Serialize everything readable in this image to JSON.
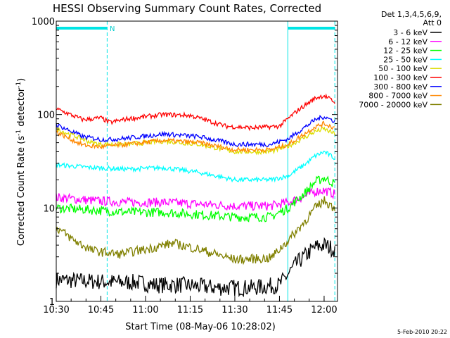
{
  "chart_data": {
    "type": "line",
    "title": "HESSI Observing Summary Count Rates, Corrected",
    "xlabel": "Start Time (08-May-06 10:28:02)",
    "ylabel_main": "Corrected Count Rate (s",
    "ylabel_sup1": "-1",
    "ylabel_mid": " detector",
    "ylabel_sup2": "-1",
    "ylabel_end": ")",
    "yscale": "log",
    "ylim": [
      1,
      1000
    ],
    "xlim": [
      10.5,
      12.075
    ],
    "x_ticks": [
      {
        "v": 10.5,
        "label": "10:30"
      },
      {
        "v": 10.75,
        "label": "10:45"
      },
      {
        "v": 11.0,
        "label": "11:00"
      },
      {
        "v": 11.25,
        "label": "11:15"
      },
      {
        "v": 11.5,
        "label": "11:30"
      },
      {
        "v": 11.75,
        "label": "11:45"
      },
      {
        "v": 12.0,
        "label": "12:00"
      }
    ],
    "y_ticks": [
      {
        "v": 1,
        "label": "1"
      },
      {
        "v": 10,
        "label": "10"
      },
      {
        "v": 100,
        "label": "100"
      },
      {
        "v": 1000,
        "label": "1000"
      }
    ],
    "legend_header": [
      "Det 1,3,4,5,6,9,",
      "Att 0"
    ],
    "legend_placement": "right",
    "annotation": "N",
    "night_intervals": [
      [
        10.5,
        10.785
      ],
      [
        11.797,
        12.06
      ]
    ],
    "event_lines": [
      10.5,
      10.785,
      11.797,
      12.06
    ],
    "footer": "5-Feb-2010 20:22",
    "series": [
      {
        "name": "3 - 6 keV",
        "color": "#000000",
        "x": [
          10.5,
          10.85,
          10.95,
          11.05,
          11.2,
          11.4,
          11.6,
          11.75,
          11.85,
          11.95,
          12.0,
          12.06
        ],
        "values": [
          1.7,
          1.6,
          1.6,
          1.5,
          1.5,
          1.4,
          1.4,
          1.5,
          2.6,
          3.8,
          4.0,
          3.6
        ]
      },
      {
        "name": "6 - 12 keV",
        "color": "#ff00ff",
        "x": [
          10.5,
          10.7,
          10.9,
          11.1,
          11.3,
          11.5,
          11.7,
          11.8,
          11.9,
          11.95,
          12.0,
          12.06
        ],
        "values": [
          13,
          12,
          11.5,
          11.5,
          11,
          10.5,
          10.5,
          11.5,
          13.5,
          15,
          15.5,
          14
        ]
      },
      {
        "name": "12 - 25 keV",
        "color": "#00ff00",
        "x": [
          10.5,
          10.7,
          10.9,
          11.1,
          11.3,
          11.5,
          11.7,
          11.8,
          11.9,
          11.95,
          12.0,
          12.06
        ],
        "values": [
          10,
          9.5,
          9,
          9,
          8.5,
          8,
          8,
          10,
          15,
          19,
          21,
          18
        ]
      },
      {
        "name": "25 - 50 keV",
        "color": "#00ffff",
        "x": [
          10.5,
          10.7,
          10.9,
          11.1,
          11.3,
          11.5,
          11.7,
          11.8,
          11.9,
          11.95,
          12.0,
          12.06
        ],
        "values": [
          29,
          27,
          26,
          27,
          24,
          20,
          20,
          22,
          30,
          36,
          40,
          34
        ]
      },
      {
        "name": "50 - 100 keV",
        "color": "#dddd00",
        "x": [
          10.5,
          10.7,
          10.75,
          10.9,
          11.1,
          11.3,
          11.5,
          11.7,
          11.8,
          11.9,
          11.95,
          12.0,
          12.06
        ],
        "values": [
          70,
          50,
          48,
          48,
          52,
          48,
          40,
          40,
          46,
          58,
          66,
          70,
          62
        ]
      },
      {
        "name": "100 - 300 keV",
        "color": "#ff0000",
        "x": [
          10.5,
          10.65,
          10.75,
          10.8,
          10.9,
          11.1,
          11.25,
          11.45,
          11.6,
          11.75,
          11.85,
          11.95,
          12.0,
          12.06
        ],
        "values": [
          115,
          88,
          92,
          82,
          90,
          100,
          98,
          75,
          72,
          75,
          110,
          150,
          160,
          135
        ]
      },
      {
        "name": "300 - 800 keV",
        "color": "#0000ff",
        "x": [
          10.5,
          10.65,
          10.75,
          10.8,
          10.9,
          11.1,
          11.3,
          11.5,
          11.7,
          11.8,
          11.9,
          11.95,
          12.0,
          12.06
        ],
        "values": [
          78,
          58,
          54,
          54,
          56,
          62,
          58,
          48,
          48,
          55,
          75,
          88,
          95,
          85
        ]
      },
      {
        "name": "800 - 7000 keV",
        "color": "#ff8800",
        "x": [
          10.5,
          10.65,
          10.75,
          10.8,
          10.9,
          11.1,
          11.3,
          11.5,
          11.7,
          11.8,
          11.9,
          11.95,
          12.0,
          12.06
        ],
        "values": [
          65,
          47,
          45,
          46,
          48,
          53,
          50,
          42,
          42,
          48,
          64,
          74,
          80,
          72
        ]
      },
      {
        "name": "7000 - 20000 keV",
        "color": "#808000",
        "x": [
          10.5,
          10.6,
          10.7,
          10.85,
          11.0,
          11.15,
          11.3,
          11.5,
          11.7,
          11.8,
          11.9,
          11.95,
          12.0,
          12.06
        ],
        "values": [
          6.2,
          4.5,
          3.5,
          3.2,
          3.6,
          4.2,
          3.6,
          2.8,
          2.9,
          4.5,
          7.5,
          10,
          12,
          10
        ]
      }
    ]
  }
}
